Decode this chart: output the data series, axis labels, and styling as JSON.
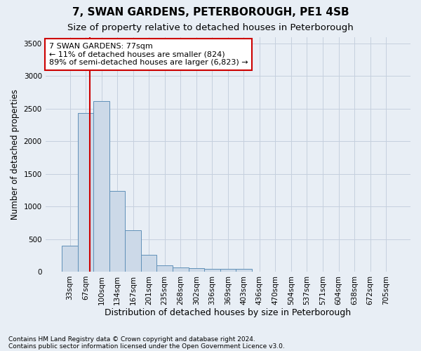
{
  "title": "7, SWAN GARDENS, PETERBOROUGH, PE1 4SB",
  "subtitle": "Size of property relative to detached houses in Peterborough",
  "xlabel": "Distribution of detached houses by size in Peterborough",
  "ylabel": "Number of detached properties",
  "footnote1": "Contains HM Land Registry data © Crown copyright and database right 2024.",
  "footnote2": "Contains public sector information licensed under the Open Government Licence v3.0.",
  "categories": [
    "33sqm",
    "67sqm",
    "100sqm",
    "134sqm",
    "167sqm",
    "201sqm",
    "235sqm",
    "268sqm",
    "302sqm",
    "336sqm",
    "369sqm",
    "403sqm",
    "436sqm",
    "470sqm",
    "504sqm",
    "537sqm",
    "571sqm",
    "604sqm",
    "638sqm",
    "672sqm",
    "705sqm"
  ],
  "values": [
    400,
    2430,
    2620,
    1240,
    630,
    260,
    100,
    60,
    50,
    45,
    40,
    45,
    0,
    0,
    0,
    0,
    0,
    0,
    0,
    0,
    0
  ],
  "bar_color": "#ccd9e8",
  "bar_edge_color": "#6090b8",
  "vline_color": "#cc0000",
  "vline_xindex": 1,
  "vline_xoffset": 0.25,
  "annotation_line1": "7 SWAN GARDENS: 77sqm",
  "annotation_line2": "← 11% of detached houses are smaller (824)",
  "annotation_line3": "89% of semi-detached houses are larger (6,823) →",
  "annotation_box_color": "white",
  "annotation_box_edge": "#cc0000",
  "ylim": [
    0,
    3600
  ],
  "yticks": [
    0,
    500,
    1000,
    1500,
    2000,
    2500,
    3000,
    3500
  ],
  "grid_color": "#c5d0de",
  "bg_color": "#e8eef5",
  "title_fontsize": 11,
  "subtitle_fontsize": 9.5,
  "ylabel_fontsize": 8.5,
  "xlabel_fontsize": 9,
  "tick_fontsize": 7.5,
  "annot_fontsize": 8,
  "footnote_fontsize": 6.5
}
